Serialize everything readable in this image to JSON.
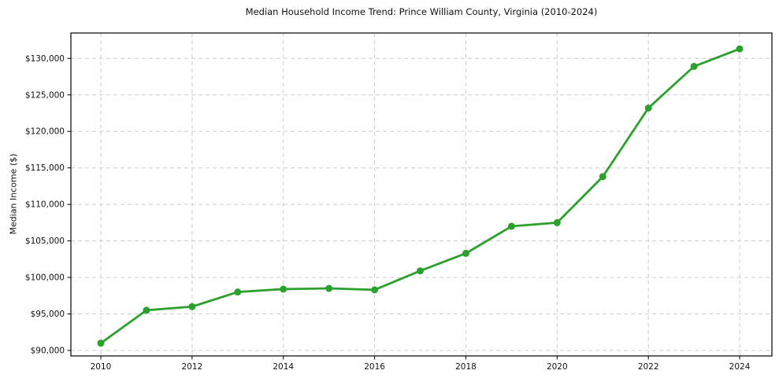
{
  "chart_data": {
    "type": "line",
    "title": "Median Household Income Trend: Prince William County, Virginia (2010-2024)",
    "xlabel": "",
    "ylabel": "Median Income ($)",
    "series": [
      {
        "name": "Median household income",
        "x": [
          2010,
          2011,
          2012,
          2013,
          2014,
          2015,
          2016,
          2017,
          2018,
          2019,
          2020,
          2021,
          2022,
          2023,
          2024
        ],
        "values": [
          91000,
          95500,
          96000,
          98000,
          98400,
          98500,
          98300,
          100900,
          103300,
          107000,
          107500,
          113800,
          123200,
          128900,
          131300
        ]
      }
    ],
    "xlim": [
      2009.344,
      2024.707
    ],
    "ylim": [
      89247,
      133476
    ],
    "x_ticks": [
      {
        "value": 2010,
        "label": "2010"
      },
      {
        "value": 2012,
        "label": "2012"
      },
      {
        "value": 2014,
        "label": "2014"
      },
      {
        "value": 2016,
        "label": "2016"
      },
      {
        "value": 2018,
        "label": "2018"
      },
      {
        "value": 2020,
        "label": "2020"
      },
      {
        "value": 2022,
        "label": "2022"
      },
      {
        "value": 2024,
        "label": "2024"
      }
    ],
    "y_ticks": [
      {
        "value": 90000,
        "label": "$90,000"
      },
      {
        "value": 95000,
        "label": "$95,000"
      },
      {
        "value": 100000,
        "label": "$100,000"
      },
      {
        "value": 105000,
        "label": "$105,000"
      },
      {
        "value": 110000,
        "label": "$110,000"
      },
      {
        "value": 115000,
        "label": "$115,000"
      },
      {
        "value": 120000,
        "label": "$120,000"
      },
      {
        "value": 125000,
        "label": "$125,000"
      },
      {
        "value": 130000,
        "label": "$130,000"
      }
    ],
    "grid": true,
    "legend_position": "none",
    "colors": {
      "line": "#2ca02c",
      "marker": "#2ca02c",
      "grid": "#cccccc",
      "axis": "#000000",
      "text": "#111111",
      "background": "#ffffff"
    }
  }
}
